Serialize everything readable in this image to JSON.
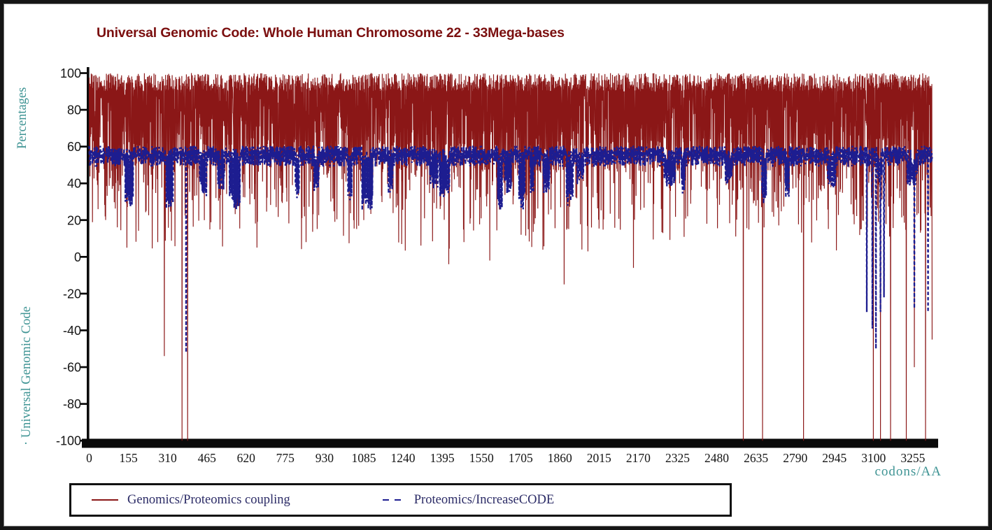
{
  "colors": {
    "background": "#ffffff",
    "frame_border": "#151515",
    "title": "#7b0f0f",
    "axis": "#0a0a0a",
    "tick_label": "#161616",
    "teal_label": "#3f9494",
    "red_series": "#8b1717",
    "blue_series": "#1d1d90",
    "legend_text": "#2b2b66",
    "legend_border": "#111111"
  },
  "chart_data": {
    "type": "line",
    "title": "Universal Genomic Code: Whole Human Chromosome 22 - 33Mega-bases",
    "xlabel": "codons/AA",
    "ylabel_top": "Percentages",
    "ylabel_bottom": "· Universal Genomic Code",
    "xlim": [
      0,
      3330
    ],
    "ylim": [
      -100,
      100
    ],
    "x_ticks": [
      0,
      155,
      310,
      465,
      620,
      775,
      930,
      1085,
      1240,
      1395,
      1550,
      1705,
      1860,
      2015,
      2170,
      2325,
      2480,
      2635,
      2790,
      2945,
      3100,
      3255
    ],
    "y_ticks": [
      100,
      80,
      60,
      40,
      20,
      0,
      -20,
      -40,
      -60,
      -80,
      -100
    ],
    "grid": false,
    "legend_position": "bottom",
    "seed": 20,
    "step": 2,
    "series": [
      {
        "name": "Genomics/Proteomics coupling",
        "color": "#8b1717",
        "style": "solid",
        "description": "Dense rapid oscillation: top envelope 90-100%, solid mass 60-100%, frequent thin downward spikes into 0-60%, rare deep spikes to -100%",
        "top_range": [
          90,
          100
        ],
        "top_dip_chance": 0.07,
        "top_dip_range": [
          68,
          90
        ],
        "bottom_bands": [
          [
            0.4,
            60,
            92
          ],
          [
            0.72,
            46,
            62
          ],
          [
            0.88,
            30,
            46
          ],
          [
            0.97,
            14,
            30
          ],
          [
            1.0,
            3,
            16
          ]
        ],
        "deep_dips": [
          {
            "x": 62,
            "v": 22
          },
          {
            "x": 148,
            "v": 5
          },
          {
            "x": 225,
            "v": 25
          },
          {
            "x": 270,
            "v": 8
          },
          {
            "x": 297,
            "v": -54
          },
          {
            "x": 366,
            "v": -100
          },
          {
            "x": 388,
            "v": -100
          },
          {
            "x": 856,
            "v": 8
          },
          {
            "x": 1085,
            "v": 20
          },
          {
            "x": 1234,
            "v": 7
          },
          {
            "x": 1420,
            "v": -4
          },
          {
            "x": 1481,
            "v": 8
          },
          {
            "x": 1583,
            "v": -2
          },
          {
            "x": 1707,
            "v": 12
          },
          {
            "x": 1876,
            "v": -15
          },
          {
            "x": 1970,
            "v": 3
          },
          {
            "x": 2150,
            "v": -6
          },
          {
            "x": 2266,
            "v": 13
          },
          {
            "x": 2440,
            "v": 18
          },
          {
            "x": 2584,
            "v": -100
          },
          {
            "x": 2661,
            "v": -100
          },
          {
            "x": 2822,
            "v": -100
          },
          {
            "x": 3098,
            "v": -100
          },
          {
            "x": 3126,
            "v": -100
          },
          {
            "x": 3167,
            "v": -100
          },
          {
            "x": 3228,
            "v": -100
          },
          {
            "x": 3260,
            "v": -60
          },
          {
            "x": 3305,
            "v": -100
          },
          {
            "x": 3330,
            "v": -45
          }
        ]
      },
      {
        "name": "Proteomics/IncreaseCODE",
        "color": "#1d1d90",
        "style": "dashed",
        "description": "Dashed band oscillating 50-60% with clustered dips to 25-45% and a few deep dips to -20..-55% near chromosome end",
        "band_top": [
          55,
          60.5
        ],
        "band_bottom": [
          49,
          57
        ],
        "cluster_chance": 0.022,
        "cluster_len": [
          4,
          26
        ],
        "cluster_depth": [
          24,
          40
        ],
        "cluster_top": [
          50,
          59
        ],
        "cluster_bottom_spread": 10,
        "deep_dips": [
          {
            "x": 383,
            "v": -52
          },
          {
            "x": 3073,
            "v": -30
          },
          {
            "x": 3095,
            "v": -39
          },
          {
            "x": 3109,
            "v": -50
          },
          {
            "x": 3126,
            "v": -30
          },
          {
            "x": 3140,
            "v": -22
          },
          {
            "x": 3261,
            "v": -28
          },
          {
            "x": 3314,
            "v": -30
          }
        ]
      }
    ]
  },
  "legend": {
    "items": [
      {
        "label": "Genomics/Proteomics coupling",
        "swatch": "solid-line",
        "color": "#8b1717"
      },
      {
        "label": "Proteomics/IncreaseCODE",
        "swatch": "dashed-line",
        "color": "#1d1d90"
      }
    ]
  }
}
